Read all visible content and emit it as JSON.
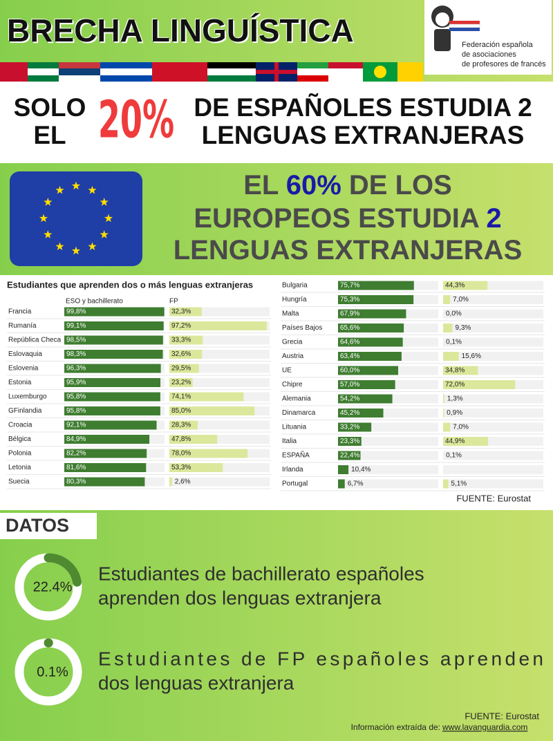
{
  "header": {
    "title": "BRECHA LINGUÍSTICA",
    "org": [
      "Federación española",
      "de asociaciones",
      "de profesores de francés"
    ]
  },
  "headline": {
    "left": [
      "SOLO",
      "EL"
    ],
    "figure": "20%",
    "right": [
      "DE ESPAÑOLES ESTUDIA 2",
      "LENGUAS EXTRANJERAS"
    ]
  },
  "eu": {
    "lines": [
      [
        "EL",
        "60%",
        "DE LOS"
      ],
      [
        "EUROPEOS ESTUDIA",
        "2"
      ],
      [
        "LENGUAS EXTRANJERAS"
      ]
    ]
  },
  "chart_data": {
    "type": "bar",
    "orientation": "horizontal",
    "title": "Estudiantes que aprenden dos o más lenguas extranjeras",
    "categories": [
      "Francia",
      "Rumanía",
      "República Checa",
      "Eslovaquia",
      "Eslovenia",
      "Estonia",
      "Luxemburgo",
      "GFinlandia",
      "Croacia",
      "Bélgica",
      "Polonia",
      "Letonia",
      "Suecia",
      "Bulgaria",
      "Hungría",
      "Malta",
      "Países Bajos",
      "Grecia",
      "Austria",
      "UE",
      "Chipre",
      "Alemania",
      "Dinamarca",
      "Lituania",
      "Italia",
      "ESPAÑA",
      "Irlanda",
      "Portugal"
    ],
    "series": [
      {
        "name": "ESO y bachillerato",
        "color": "#3f7d31",
        "values": [
          99.8,
          99.1,
          98.5,
          98.3,
          96.3,
          95.9,
          95.8,
          95.8,
          92.1,
          84.9,
          82.2,
          81.6,
          80.3,
          75.7,
          75.3,
          67.9,
          65.6,
          64.6,
          63.4,
          60.0,
          57.0,
          54.2,
          45.2,
          33.2,
          23.3,
          22.4,
          10.4,
          6.7
        ],
        "value_labels": [
          "99,8%",
          "99,1%",
          "98,5%",
          "98,3%",
          "96,3%",
          "95,9%",
          "95,8%",
          "95,8%",
          "92,1%",
          "84,9%",
          "82,2%",
          "81,6%",
          "80,3%",
          "75,7%",
          "75,3%",
          "67,9%",
          "65,6%",
          "64,6%",
          "63,4%",
          "60,0%",
          "57,0%",
          "54,2%",
          "45,2%",
          "33,2%",
          "23,3%",
          "22,4%",
          "10,4%",
          "6,7%"
        ]
      },
      {
        "name": "FP",
        "color": "#dbe89c",
        "values": [
          32.3,
          97.2,
          33.3,
          32.6,
          29.5,
          23.2,
          74.1,
          85.0,
          28.3,
          47.8,
          78.0,
          53.3,
          2.6,
          44.3,
          7.0,
          0.0,
          9.3,
          0.1,
          15.6,
          34.8,
          72.0,
          1.3,
          0.9,
          7.0,
          44.9,
          0.1,
          null,
          5.1
        ],
        "value_labels": [
          "32,3%",
          "97,2%",
          "33,3%",
          "32,6%",
          "29,5%",
          "23,2%",
          "74,1%",
          "85,0%",
          "28,3%",
          "47,8%",
          "78,0%",
          "53,3%",
          "2,6%",
          "44,3%",
          "7,0%",
          "0,0%",
          "9,3%",
          "0,1%",
          "15,6%",
          "34,8%",
          "72,0%",
          "1,3%",
          "0,9%",
          "7,0%",
          "44,9%",
          "0,1%",
          null,
          "5,1%"
        ]
      }
    ],
    "xlim": [
      0,
      100
    ],
    "source": "FUENTE: Eurostat"
  },
  "datos": {
    "title": "DATOS",
    "items": [
      {
        "value": 22.4,
        "value_label": "22.4%",
        "lines": [
          "Estudiantes de bachillerato españoles",
          "aprenden dos lenguas extranjera"
        ]
      },
      {
        "value": 0.1,
        "value_label": "0.1%",
        "lines": [
          "Estudiantes de FP españoles aprenden",
          "dos lenguas extranjera"
        ]
      }
    ]
  },
  "footer": {
    "source": "FUENTE: Eurostat",
    "credit": "Información extraída de:",
    "link": "www.lavanguardia.com"
  }
}
